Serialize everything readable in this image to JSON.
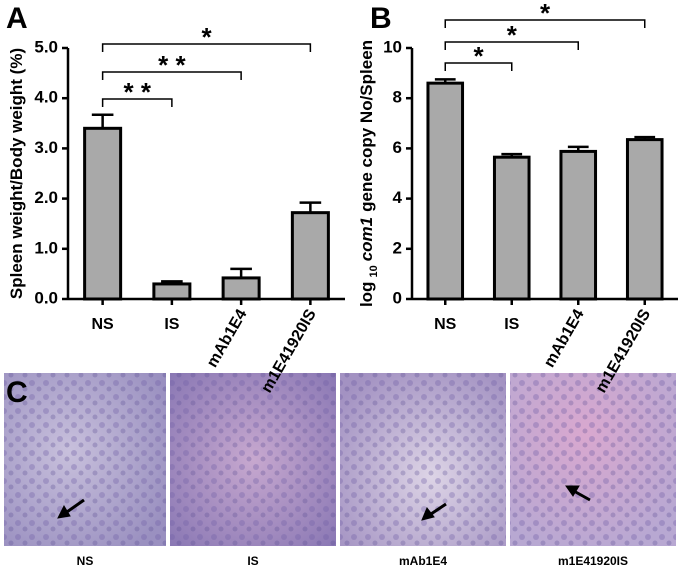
{
  "chart_data": [
    {
      "type": "bar",
      "panel": "A",
      "y_label": [
        "Spleen weight/Body weight (%)"
      ],
      "categories": [
        "NS",
        "IS",
        "mAb1E4",
        "m1E41920IS"
      ],
      "values": [
        3.4,
        0.3,
        0.42,
        1.72
      ],
      "errors": [
        0.27,
        0.05,
        0.18,
        0.2
      ],
      "color": "#a9a9a9",
      "ylim": [
        0,
        5
      ],
      "yticks": [
        {
          "value": 0,
          "label": "0.0"
        },
        {
          "value": 1,
          "label": "1.0"
        },
        {
          "value": 2,
          "label": "2.0"
        },
        {
          "value": 3,
          "label": "3.0"
        },
        {
          "value": 4,
          "label": "4.0"
        },
        {
          "value": 5,
          "label": "5.0"
        }
      ],
      "comparisons": [
        {
          "text": "* *",
          "between": [
            "NS",
            "IS"
          ]
        },
        {
          "text": "* *",
          "between": [
            "NS",
            "mAb1E4"
          ]
        },
        {
          "text": "*",
          "between": [
            "NS",
            "m1E41920IS"
          ]
        }
      ]
    },
    {
      "type": "bar",
      "panel": "B",
      "y_label": [
        "log",
        "10",
        "com1",
        "gene copy No/Spleen"
      ],
      "categories": [
        "NS",
        "IS",
        "mAb1E4",
        "m1E41920IS"
      ],
      "values": [
        8.6,
        5.65,
        5.88,
        6.35
      ],
      "errors": [
        0.15,
        0.12,
        0.18,
        0.1
      ],
      "color": "#a9a9a9",
      "ylim": [
        0,
        10
      ],
      "yticks": [
        0,
        2,
        4,
        6,
        8,
        10
      ],
      "comparisons": [
        {
          "text": "*",
          "between": [
            "NS",
            "IS"
          ]
        },
        {
          "text": "*",
          "between": [
            "NS",
            "mAb1E4"
          ]
        },
        {
          "text": "*",
          "between": [
            "NS",
            "m1E41920IS"
          ]
        }
      ]
    }
  ],
  "panel_c": {
    "label": "C",
    "captions": [
      "NS",
      "IS",
      "mAb1E4",
      "m1E41920IS"
    ]
  }
}
